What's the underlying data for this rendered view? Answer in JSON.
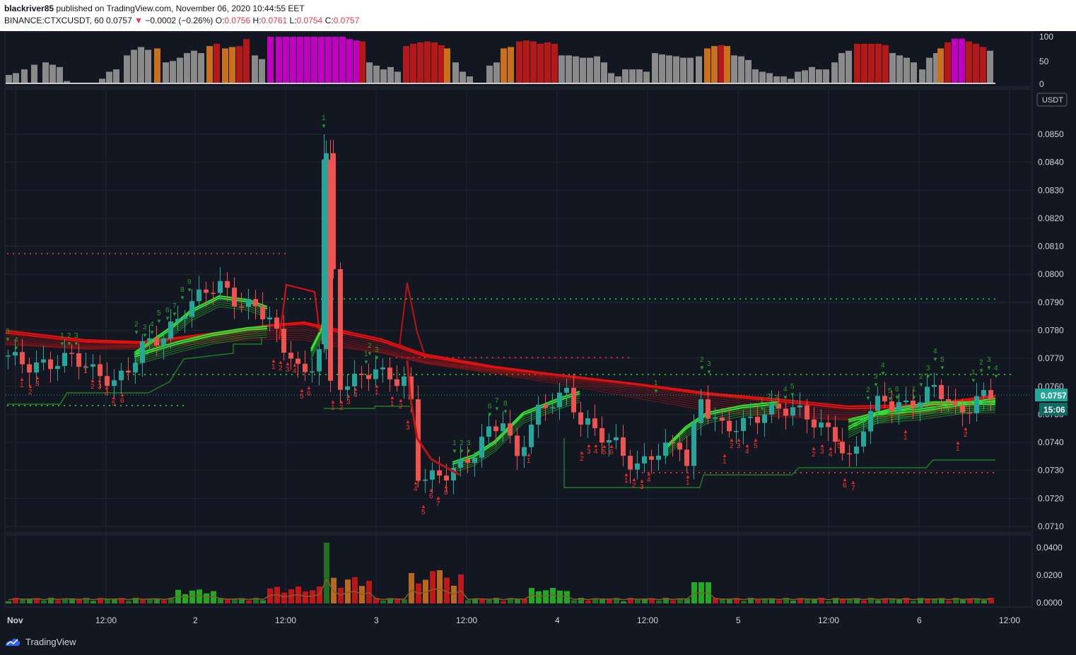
{
  "header": {
    "author": "blackriver85",
    "published_text": "published on TradingView.com, November 06, 2020 10:44:55 EET",
    "symbol": "BINANCE:CTXCUSDT, 60",
    "last_price": "0.0757",
    "change": "−0.0002 (−0.26%)",
    "o_label": "O:",
    "o_value": "0.0756",
    "h_label": "H:",
    "h_value": "0.0761",
    "l_label": "L:",
    "l_value": "0.0754",
    "c_label": "C:",
    "c_value": "0.0757"
  },
  "top_panel": {
    "axis": [
      "100",
      "50",
      "0"
    ]
  },
  "price_axis": {
    "currency": "USDT",
    "ticks": [
      "0.0850",
      "0.0840",
      "0.0830",
      "0.0820",
      "0.0810",
      "0.0800",
      "0.0790",
      "0.0780",
      "0.0770",
      "0.0760",
      "0.0750",
      "0.0740",
      "0.0730",
      "0.0720",
      "0.0710"
    ],
    "last_price_label": "0.0757",
    "countdown_label": "15:06"
  },
  "volume_axis": {
    "ticks": [
      "0.0400",
      "0.0200",
      "0.0000"
    ]
  },
  "time_axis": {
    "labels": [
      "Nov",
      "12:00",
      "2",
      "12:00",
      "3",
      "12:00",
      "4",
      "12:00",
      "5",
      "12:00",
      "6",
      "12:00"
    ]
  },
  "footer": {
    "brand": "TradingView"
  },
  "colors": {
    "background": "#131722",
    "bull": "#26a69a",
    "bear": "#ef5350",
    "ribbon_red": "#d32f2f",
    "ribbon_green": "#1fbf1f",
    "magenta": "#c000c0"
  },
  "icons": [
    "tradingview-logo-icon",
    "down-triangle-icon"
  ]
}
